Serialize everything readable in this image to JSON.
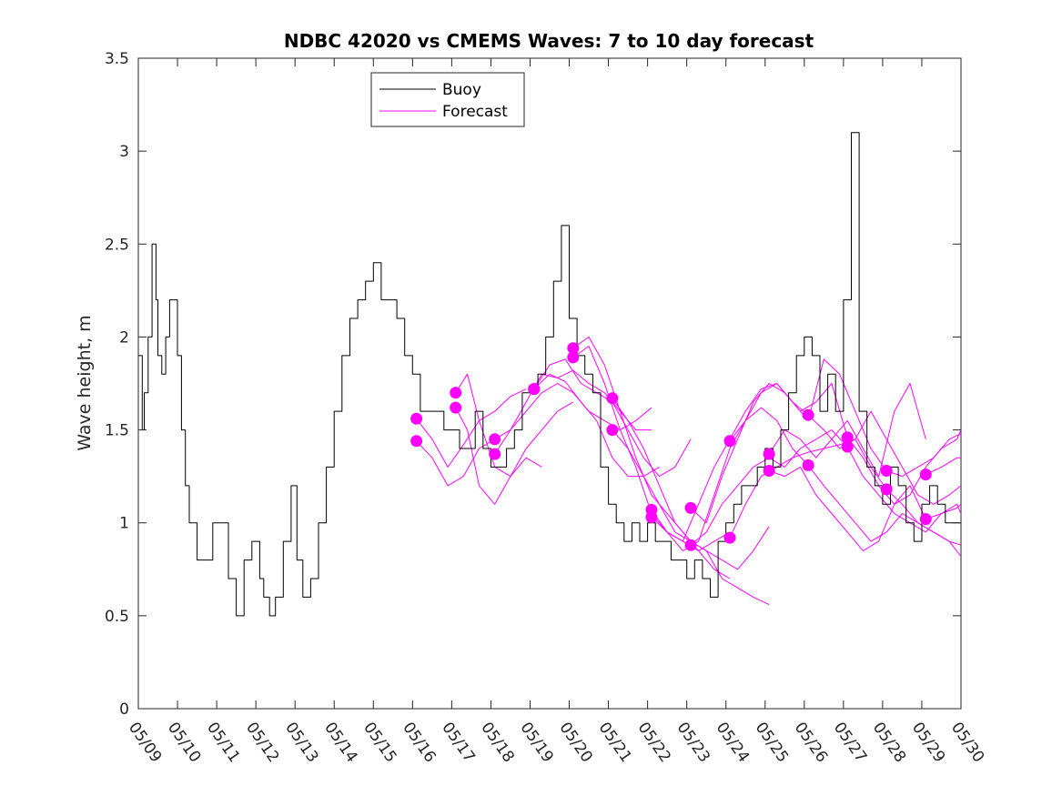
{
  "chart_data": {
    "type": "line",
    "title": "NDBC 42020 vs CMEMS Waves: 7 to 10 day forecast",
    "xlabel": "",
    "ylabel": "Wave height, m",
    "xlim": [
      0,
      21
    ],
    "ylim": [
      0,
      3.5
    ],
    "x_unit": "days from 05/09",
    "x_tick_labels": [
      "05/09",
      "05/10",
      "05/11",
      "05/12",
      "05/13",
      "05/14",
      "05/15",
      "05/16",
      "05/17",
      "05/18",
      "05/19",
      "05/20",
      "05/21",
      "05/22",
      "05/23",
      "05/24",
      "05/25",
      "05/26",
      "05/27",
      "05/28",
      "05/29",
      "05/30"
    ],
    "y_ticks": [
      0,
      0.5,
      1,
      1.5,
      2,
      2.5,
      3,
      3.5
    ],
    "y_tick_labels": [
      "0",
      "0.5",
      "1",
      "1.5",
      "2",
      "2.5",
      "3",
      "3.5"
    ],
    "grid": false,
    "legend": {
      "position": "top-center",
      "entries": [
        "Buoy",
        "Forecast"
      ]
    },
    "colors": {
      "buoy": "#000000",
      "forecast": "#ff00ff",
      "axes": "#262626"
    },
    "series": [
      {
        "name": "Buoy",
        "color": "#000000",
        "x": [
          0.0,
          0.1,
          0.15,
          0.25,
          0.35,
          0.45,
          0.5,
          0.6,
          0.7,
          0.8,
          0.9,
          1.0,
          1.1,
          1.2,
          1.3,
          1.5,
          1.7,
          1.9,
          2.1,
          2.3,
          2.5,
          2.7,
          2.9,
          3.1,
          3.2,
          3.35,
          3.5,
          3.7,
          3.9,
          4.05,
          4.2,
          4.4,
          4.6,
          4.8,
          5.0,
          5.2,
          5.4,
          5.6,
          5.8,
          6.0,
          6.2,
          6.4,
          6.6,
          6.8,
          7.0,
          7.2,
          7.4,
          7.6,
          7.8,
          8.0,
          8.2,
          8.4,
          8.6,
          8.8,
          9.0,
          9.2,
          9.4,
          9.6,
          9.8,
          10.0,
          10.2,
          10.4,
          10.6,
          10.8,
          11.0,
          11.2,
          11.4,
          11.6,
          11.8,
          12.0,
          12.2,
          12.4,
          12.6,
          12.8,
          13.0,
          13.2,
          13.4,
          13.6,
          13.8,
          14.0,
          14.2,
          14.4,
          14.6,
          14.8,
          15.0,
          15.2,
          15.4,
          15.6,
          15.8,
          16.0,
          16.2,
          16.4,
          16.6,
          16.8,
          17.0,
          17.2,
          17.4,
          17.6,
          17.8,
          18.0,
          18.2,
          18.4,
          18.6,
          18.8,
          19.0,
          19.2,
          19.4,
          19.6,
          19.8,
          20.0,
          20.2,
          20.4,
          20.6,
          20.8,
          21.0
        ],
        "values": [
          1.9,
          1.5,
          1.7,
          2.0,
          2.5,
          2.2,
          1.9,
          1.8,
          2.0,
          2.2,
          2.2,
          1.9,
          1.5,
          1.2,
          1.0,
          0.8,
          0.8,
          1.0,
          1.0,
          0.7,
          0.5,
          0.8,
          0.9,
          0.7,
          0.6,
          0.5,
          0.6,
          0.9,
          1.2,
          0.8,
          0.6,
          0.7,
          1.0,
          1.3,
          1.6,
          1.9,
          2.1,
          2.2,
          2.3,
          2.4,
          2.2,
          2.2,
          2.1,
          1.9,
          1.8,
          1.6,
          1.6,
          1.6,
          1.5,
          1.5,
          1.4,
          1.4,
          1.6,
          1.4,
          1.3,
          1.3,
          1.4,
          1.5,
          1.7,
          1.7,
          1.8,
          2.0,
          2.3,
          2.6,
          2.1,
          1.9,
          1.8,
          1.7,
          1.3,
          1.1,
          1.0,
          0.9,
          1.0,
          0.9,
          1.0,
          0.9,
          0.9,
          0.8,
          0.8,
          0.7,
          0.8,
          0.7,
          0.6,
          0.9,
          1.0,
          1.1,
          1.2,
          1.2,
          1.3,
          1.4,
          1.3,
          1.5,
          1.7,
          1.9,
          2.0,
          1.9,
          1.6,
          1.8,
          1.6,
          2.2,
          3.1,
          1.6,
          1.3,
          1.2,
          1.1,
          1.3,
          1.2,
          1.0,
          0.9,
          1.1,
          1.2,
          1.1,
          1.0,
          1.0,
          1.0
        ]
      },
      {
        "name": "Forecast",
        "color": "#ff00ff",
        "x": [
          7.1,
          7.5,
          7.9,
          8.3,
          8.7,
          9.1,
          9.5,
          9.9
        ],
        "values": [
          1.56,
          1.45,
          1.3,
          1.42,
          1.55,
          1.6,
          1.68,
          1.72
        ]
      },
      {
        "name": "",
        "color": "#ff00ff",
        "x": [
          7.1,
          7.5,
          7.9,
          8.3,
          8.7,
          9.1
        ],
        "values": [
          1.44,
          1.35,
          1.2,
          1.25,
          1.4,
          1.45
        ]
      },
      {
        "name": "",
        "color": "#ff00ff",
        "x": [
          8.1,
          8.4,
          8.7,
          9.1,
          9.5,
          9.9,
          10.3,
          10.7,
          11.1
        ],
        "values": [
          1.7,
          1.8,
          1.55,
          1.3,
          1.25,
          1.4,
          1.5,
          1.6,
          1.65
        ]
      },
      {
        "name": "",
        "color": "#ff00ff",
        "x": [
          8.1,
          8.4,
          8.7,
          9.1,
          9.5,
          9.9,
          10.3
        ],
        "values": [
          1.62,
          1.5,
          1.2,
          1.1,
          1.25,
          1.35,
          1.3
        ]
      },
      {
        "name": "",
        "color": "#ff00ff",
        "x": [
          9.1,
          9.5,
          9.9,
          10.3,
          10.7,
          11.1,
          11.5,
          11.9,
          12.3,
          12.7,
          13.1
        ],
        "values": [
          1.45,
          1.5,
          1.65,
          1.8,
          1.78,
          1.82,
          1.75,
          1.7,
          1.6,
          1.5,
          1.5
        ]
      },
      {
        "name": "",
        "color": "#ff00ff",
        "x": [
          9.1,
          9.5,
          9.9,
          10.3,
          10.7,
          11.1,
          11.5,
          11.9,
          12.3,
          12.7,
          13.1
        ],
        "values": [
          1.37,
          1.5,
          1.6,
          1.7,
          1.75,
          1.7,
          1.6,
          1.55,
          1.5,
          1.55,
          1.62
        ]
      },
      {
        "name": "",
        "color": "#ff00ff",
        "x": [
          10.1,
          10.5,
          10.9,
          11.3,
          11.7,
          12.1,
          12.5,
          12.9,
          13.3,
          13.7,
          14.1
        ],
        "values": [
          1.72,
          1.85,
          1.88,
          1.75,
          1.7,
          1.65,
          1.5,
          1.35,
          1.25,
          1.3,
          1.45
        ]
      },
      {
        "name": "",
        "color": "#ff00ff",
        "x": [
          10.1,
          10.5,
          10.9,
          11.3,
          11.7,
          12.1,
          12.5,
          12.9,
          13.3
        ],
        "values": [
          1.72,
          1.8,
          1.76,
          1.65,
          1.55,
          1.35,
          1.25,
          1.25,
          1.3
        ]
      },
      {
        "name": "",
        "color": "#ff00ff",
        "x": [
          11.1,
          11.5,
          11.9,
          12.3,
          12.7,
          13.1,
          13.5,
          13.9,
          14.3,
          14.7,
          15.1
        ],
        "values": [
          1.94,
          2.0,
          1.85,
          1.6,
          1.35,
          1.15,
          1.05,
          0.95,
          0.85,
          0.75,
          0.7
        ]
      },
      {
        "name": "",
        "color": "#ff00ff",
        "x": [
          11.1,
          11.5,
          11.9,
          12.3,
          12.7,
          13.1,
          13.5,
          13.9,
          14.3,
          14.7,
          15.1
        ],
        "values": [
          1.89,
          1.95,
          1.75,
          1.5,
          1.3,
          1.05,
          0.95,
          0.9,
          0.85,
          0.9,
          0.95
        ]
      },
      {
        "name": "",
        "color": "#ff00ff",
        "x": [
          12.1,
          12.5,
          12.9,
          13.3,
          13.7,
          14.1,
          14.5,
          14.9,
          15.3,
          15.7,
          16.1
        ],
        "values": [
          1.67,
          1.55,
          1.4,
          1.2,
          1.0,
          0.9,
          0.85,
          0.7,
          0.65,
          0.6,
          0.56
        ]
      },
      {
        "name": "",
        "color": "#ff00ff",
        "x": [
          12.1,
          12.5,
          12.9,
          13.3,
          13.7,
          14.1,
          14.5,
          14.9,
          15.3,
          15.7,
          16.1
        ],
        "values": [
          1.5,
          1.4,
          1.25,
          1.1,
          0.95,
          0.9,
          0.85,
          0.8,
          0.75,
          0.85,
          0.98
        ]
      },
      {
        "name": "",
        "color": "#ff00ff",
        "x": [
          13.1,
          13.5,
          13.9,
          14.3,
          14.7,
          15.1,
          15.5,
          15.9,
          16.3,
          16.7,
          17.1
        ],
        "values": [
          1.07,
          0.95,
          0.9,
          1.1,
          1.3,
          1.45,
          1.6,
          1.72,
          1.75,
          1.65,
          1.58
        ]
      },
      {
        "name": "",
        "color": "#ff00ff",
        "x": [
          13.1,
          13.5,
          13.9,
          14.3,
          14.7,
          15.1,
          15.5,
          15.9,
          16.3,
          16.7,
          17.1
        ],
        "values": [
          1.03,
          0.95,
          0.85,
          0.9,
          1.15,
          1.4,
          1.55,
          1.62,
          1.55,
          1.4,
          1.31
        ]
      },
      {
        "name": "",
        "color": "#ff00ff",
        "x": [
          14.1,
          14.5,
          14.9,
          15.3,
          15.7,
          16.1,
          16.5,
          16.9,
          17.3,
          17.7,
          18.1
        ],
        "values": [
          1.08,
          1.0,
          1.25,
          1.45,
          1.65,
          1.75,
          1.7,
          1.6,
          1.65,
          1.75,
          1.46
        ]
      },
      {
        "name": "",
        "color": "#ff00ff",
        "x": [
          14.1,
          14.5,
          14.9,
          15.3,
          15.7,
          16.1,
          16.5,
          16.9,
          17.3,
          17.7,
          18.1
        ],
        "values": [
          0.88,
          0.95,
          1.1,
          1.2,
          1.3,
          1.35,
          1.3,
          1.4,
          1.45,
          1.5,
          1.41
        ]
      },
      {
        "name": "",
        "color": "#ff00ff",
        "x": [
          15.1,
          15.5,
          15.9,
          16.3,
          16.7,
          17.1,
          17.5,
          17.9,
          18.3,
          18.7,
          19.1
        ],
        "values": [
          1.44,
          1.55,
          1.7,
          1.75,
          1.65,
          1.55,
          1.88,
          1.8,
          1.6,
          1.4,
          1.28
        ]
      },
      {
        "name": "",
        "color": "#ff00ff",
        "x": [
          15.1,
          15.5,
          15.9,
          16.3,
          16.7,
          17.1,
          17.5,
          17.9,
          18.3,
          18.7,
          19.1
        ],
        "values": [
          0.92,
          1.1,
          1.25,
          1.3,
          1.35,
          1.38,
          1.4,
          1.42,
          1.45,
          1.3,
          1.18
        ]
      },
      {
        "name": "",
        "color": "#ff00ff",
        "x": [
          16.1,
          16.5,
          16.9,
          17.3,
          17.7,
          18.1,
          18.5,
          18.9,
          19.3,
          19.7,
          20.1
        ],
        "values": [
          1.37,
          1.5,
          1.45,
          1.35,
          1.45,
          1.55,
          1.4,
          1.25,
          1.6,
          1.75,
          1.45
        ]
      },
      {
        "name": "",
        "color": "#ff00ff",
        "x": [
          16.1,
          16.5,
          16.9,
          17.3,
          17.7,
          18.1,
          18.5,
          18.9,
          19.3,
          19.7,
          20.1
        ],
        "values": [
          1.28,
          1.25,
          1.3,
          1.15,
          1.05,
          0.95,
          0.85,
          0.9,
          1.1,
          1.2,
          1.02
        ]
      },
      {
        "name": "",
        "color": "#ff00ff",
        "x": [
          17.1,
          17.5,
          17.9,
          18.3,
          18.7,
          19.1,
          19.5,
          19.9,
          20.3,
          20.7,
          21.0
        ],
        "values": [
          1.58,
          1.5,
          1.4,
          1.45,
          1.6,
          1.45,
          1.3,
          1.15,
          1.1,
          1.15,
          1.2
        ]
      },
      {
        "name": "",
        "color": "#ff00ff",
        "x": [
          17.1,
          17.5,
          17.9,
          18.3,
          18.7,
          19.1,
          19.5,
          19.9,
          20.3,
          20.7,
          21.0
        ],
        "values": [
          1.31,
          1.2,
          1.1,
          1.0,
          0.9,
          0.95,
          1.05,
          1.0,
          0.95,
          0.9,
          0.88
        ]
      },
      {
        "name": "",
        "color": "#ff00ff",
        "x": [
          18.1,
          18.5,
          18.9,
          19.3,
          19.7,
          20.1,
          20.5,
          20.9,
          21.0
        ],
        "values": [
          1.46,
          1.35,
          1.2,
          1.1,
          1.15,
          1.3,
          1.4,
          1.45,
          1.5
        ]
      },
      {
        "name": "",
        "color": "#ff00ff",
        "x": [
          18.1,
          18.5,
          18.9,
          19.3,
          19.7,
          20.1,
          20.5,
          20.9,
          21.0
        ],
        "values": [
          1.41,
          1.25,
          1.15,
          1.05,
          1.0,
          0.95,
          1.05,
          1.1,
          1.05
        ]
      },
      {
        "name": "",
        "color": "#ff00ff",
        "x": [
          19.1,
          19.5,
          19.9,
          20.3,
          20.7,
          21.0
        ],
        "values": [
          1.28,
          1.25,
          1.3,
          1.35,
          1.45,
          1.48
        ]
      },
      {
        "name": "",
        "color": "#ff00ff",
        "x": [
          19.1,
          19.5,
          19.9,
          20.3,
          20.7,
          21.0
        ],
        "values": [
          1.18,
          1.1,
          1.0,
          0.95,
          0.9,
          0.82
        ]
      },
      {
        "name": "",
        "color": "#ff00ff",
        "x": [
          20.1,
          20.5,
          20.9,
          21.0
        ],
        "values": [
          1.26,
          1.3,
          1.35,
          1.35
        ]
      },
      {
        "name": "",
        "color": "#ff00ff",
        "x": [
          20.1,
          20.5,
          20.9,
          21.0
        ],
        "values": [
          1.02,
          1.05,
          1.08,
          1.1
        ]
      }
    ],
    "markers": {
      "color": "#ff00ff",
      "x": [
        7.1,
        7.1,
        8.1,
        8.1,
        9.1,
        9.1,
        10.1,
        10.1,
        11.1,
        11.1,
        12.1,
        12.1,
        13.1,
        13.1,
        14.1,
        14.1,
        15.1,
        15.1,
        16.1,
        16.1,
        17.1,
        17.1,
        18.1,
        18.1,
        19.1,
        19.1,
        20.1,
        20.1
      ],
      "values": [
        1.56,
        1.44,
        1.7,
        1.62,
        1.45,
        1.37,
        1.72,
        1.72,
        1.94,
        1.89,
        1.67,
        1.5,
        1.07,
        1.03,
        1.08,
        0.88,
        1.44,
        0.92,
        1.37,
        1.28,
        1.58,
        1.31,
        1.46,
        1.41,
        1.28,
        1.18,
        1.26,
        1.02
      ]
    }
  }
}
